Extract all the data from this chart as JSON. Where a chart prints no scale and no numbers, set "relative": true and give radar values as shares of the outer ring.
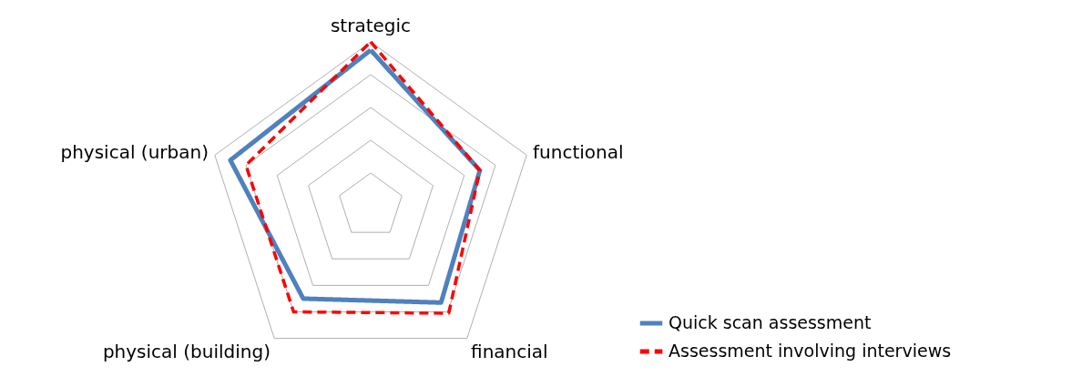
{
  "chart_data": {
    "type": "radar",
    "relative": true,
    "grid": true,
    "legend": "bottom right",
    "categories": [
      "strategic",
      "functional",
      "financial",
      "physical (building)",
      "physical (urban)"
    ],
    "series": [
      {
        "name": "Quick scan assessment",
        "color": "#4f81bd",
        "line_style": "solid",
        "values": [
          0.95,
          0.7,
          0.73,
          0.7,
          0.9
        ]
      },
      {
        "name": "Assessment involving interviews",
        "color": "#ff0000",
        "line_style": "dashed",
        "values": [
          1.0,
          0.7,
          0.81,
          0.8,
          0.8
        ]
      }
    ]
  }
}
